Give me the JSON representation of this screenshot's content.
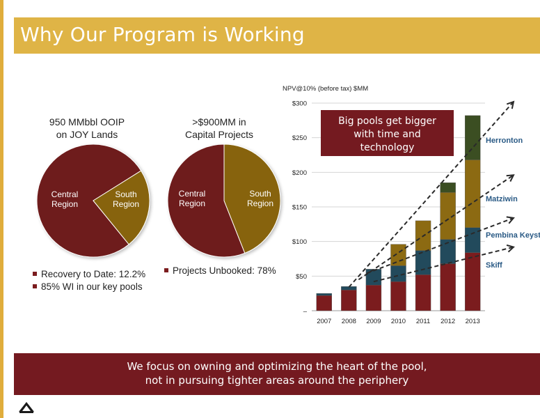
{
  "slide": {
    "title": "Why Our Program is Working",
    "colors": {
      "accent_gold": "#dfb446",
      "maroon": "#741a20",
      "pie_maroon": "#6e1b1b",
      "pie_gold": "#876307"
    },
    "pie1": {
      "title_line1": "950 MMbbl OOIP",
      "title_line2": "on JOY Lands",
      "central_label_1": "Central",
      "central_label_2": "Region",
      "south_label_1": "South",
      "south_label_2": "Region"
    },
    "pie2": {
      "title_line1": ">$900MM in",
      "title_line2": "Capital Projects",
      "central_label_1": "Central",
      "central_label_2": "Region",
      "south_label_1": "South",
      "south_label_2": "Region"
    },
    "legend_left": [
      "Recovery to Date: 12.2%",
      "85% WI in our key pools"
    ],
    "legend_right": [
      "Projects Unbooked: 78%"
    ],
    "callout": {
      "line1": "Big pools get bigger",
      "line2": "with time and",
      "line3": "technology"
    },
    "bottom": {
      "line1": "We focus on owning and optimizing the heart of the pool,",
      "line2": "not in pursuing tighter areas around the periphery"
    },
    "logo_icon": "company-logo-icon"
  },
  "chart_data": [
    {
      "type": "pie",
      "labels": [
        "Central Region",
        "South Region"
      ],
      "values": [
        77,
        23
      ],
      "title": "950 MMbbl OOIP on JOY Lands"
    },
    {
      "type": "pie",
      "labels": [
        "Central Region",
        "South Region"
      ],
      "values": [
        56,
        44
      ],
      "title": ">$900MM in Capital Projects"
    },
    {
      "type": "bar",
      "stacked": true,
      "ylabel": "NPV@10% (before tax) $MM",
      "categories": [
        "2007",
        "2008",
        "2009",
        "2010",
        "2011",
        "2012",
        "2013"
      ],
      "ylim": [
        0,
        300
      ],
      "yticks": [
        "–",
        "$50",
        "$100",
        "$150",
        "$200",
        "$250",
        "$300"
      ],
      "grid": true,
      "series": [
        {
          "name": "Skiff",
          "color": "#7b1c1e",
          "values": [
            22,
            30,
            37,
            42,
            52,
            68,
            84
          ]
        },
        {
          "name": "Pembina Keystone",
          "color": "#224a5c",
          "values": [
            3,
            5,
            23,
            23,
            35,
            35,
            36
          ]
        },
        {
          "name": "Matziwin",
          "color": "#8c6a12",
          "values": [
            0,
            0,
            0,
            31,
            43,
            68,
            98
          ]
        },
        {
          "name": "Herronton",
          "color": "#3b4e22",
          "values": [
            0,
            0,
            0,
            0,
            0,
            14,
            64
          ]
        }
      ],
      "annotations": [
        "Herronton",
        "Matziwin",
        "Pembina Keyst",
        "Skiff"
      ]
    }
  ]
}
